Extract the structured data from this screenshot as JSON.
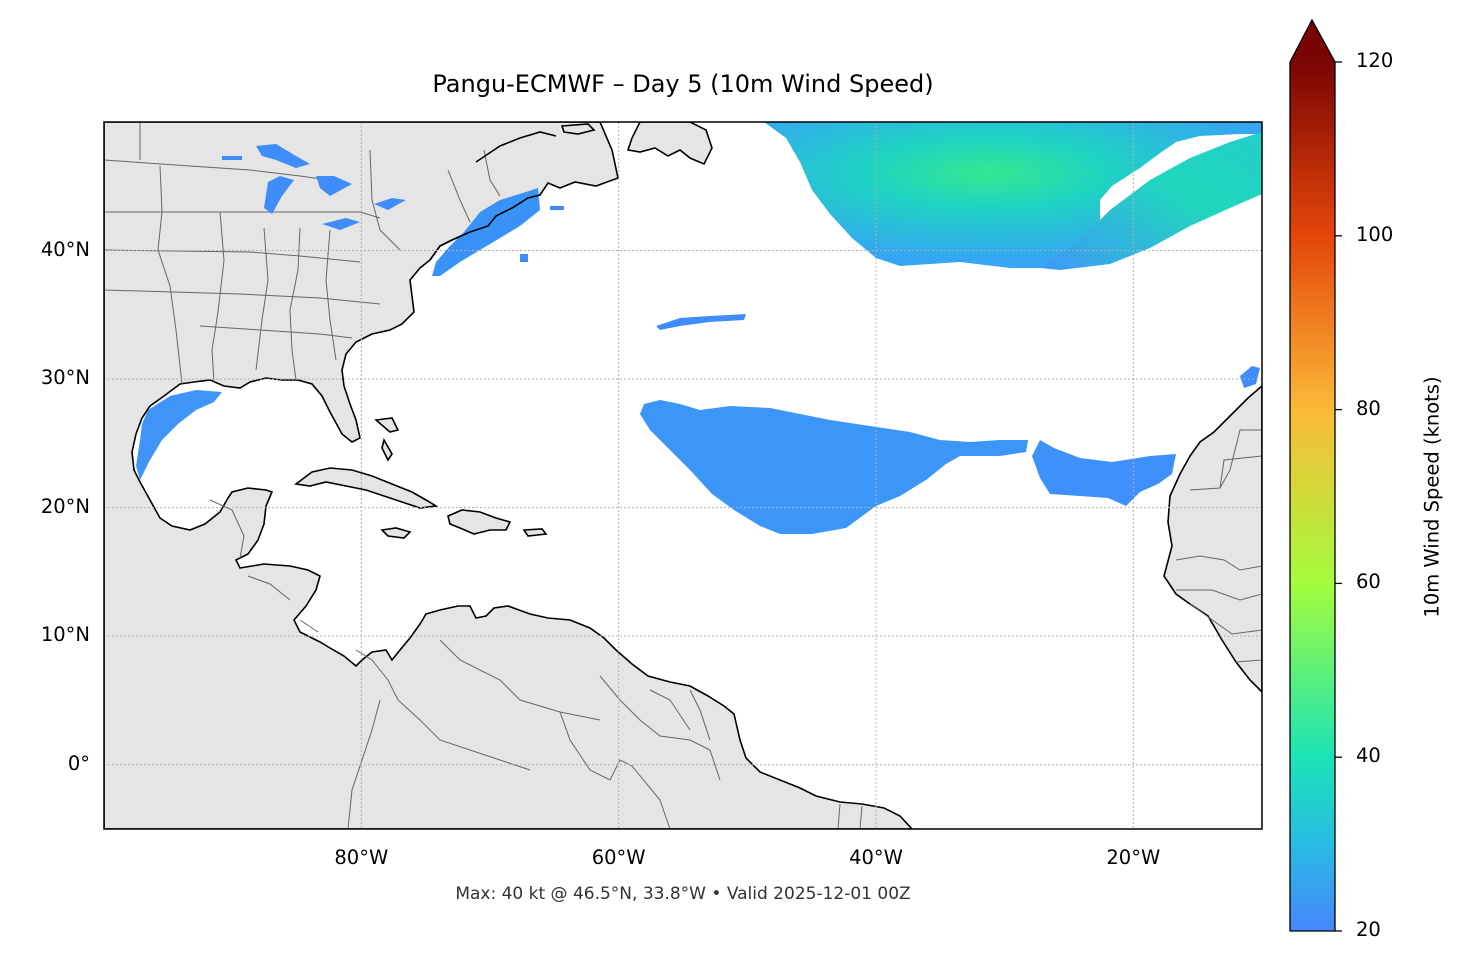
{
  "title": "Pangu-ECMWF – Day 5 (10m Wind Speed)",
  "footer": "Max: 40 kt @ 46.5°N, 33.8°W • Valid 2025-12-01 00Z",
  "map": {
    "lon_range": [
      -100,
      -10
    ],
    "lat_range": [
      -5,
      50
    ],
    "lat_ticks": [
      {
        "value": 40,
        "label": "40°N"
      },
      {
        "value": 30,
        "label": "30°N"
      },
      {
        "value": 20,
        "label": "20°N"
      },
      {
        "value": 10,
        "label": "10°N"
      },
      {
        "value": 0,
        "label": "0°"
      }
    ],
    "lon_ticks": [
      {
        "value": -80,
        "label": "80°W"
      },
      {
        "value": -60,
        "label": "60°W"
      },
      {
        "value": -40,
        "label": "40°W"
      },
      {
        "value": -20,
        "label": "20°W"
      }
    ],
    "gridlines": true,
    "land_color": "#e5e5e5",
    "coast_color": "#000000",
    "border_color": "#666666"
  },
  "colorbar": {
    "label": "10m Wind Speed (knots)",
    "min": 20,
    "max": 120,
    "extend": "max",
    "ticks": [
      {
        "value": 120,
        "label": "120"
      },
      {
        "value": 100,
        "label": "100"
      },
      {
        "value": 80,
        "label": "80"
      },
      {
        "value": 60,
        "label": "60"
      },
      {
        "value": 40,
        "label": "40"
      },
      {
        "value": 20,
        "label": "20"
      }
    ],
    "colors": [
      "#4686fb",
      "#1ae4b6",
      "#a4fc3c",
      "#fbb938",
      "#e4460a",
      "#7a0403"
    ]
  },
  "wind_regions": [
    {
      "name": "north-atlantic-jet",
      "max_kt": 40
    },
    {
      "name": "subtropical-band",
      "max_kt": 27
    },
    {
      "name": "gulf-of-mexico",
      "max_kt": 24
    },
    {
      "name": "us-east-coast",
      "max_kt": 25
    }
  ]
}
